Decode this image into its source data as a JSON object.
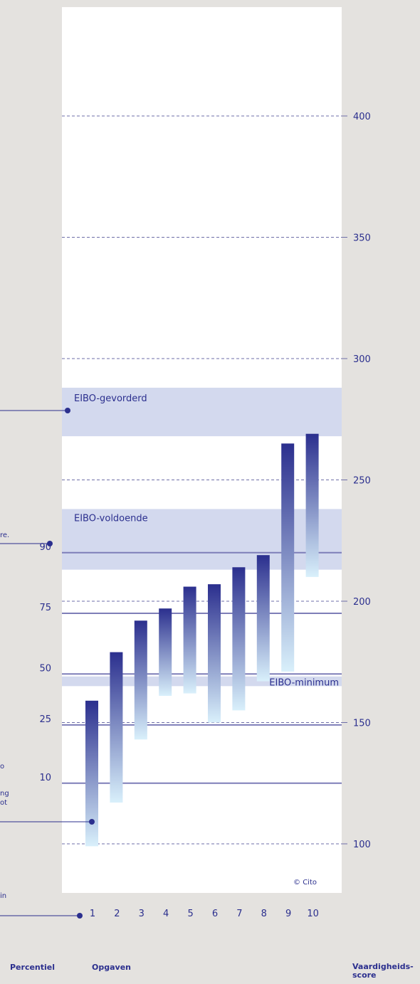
{
  "chart_data": {
    "type": "bar",
    "title": "",
    "xlabel": "Opgaven",
    "ylabel": "Vaardigheids-score",
    "left_axis_label": "Percentiel",
    "copyright": "© Cito",
    "ylim": [
      75,
      420
    ],
    "right_axis_ticks": [
      100,
      150,
      200,
      250,
      300,
      350,
      400
    ],
    "categories": [
      "1",
      "2",
      "3",
      "4",
      "5",
      "6",
      "7",
      "8",
      "9",
      "10"
    ],
    "series": [
      {
        "low": [
          99,
          117,
          143,
          161,
          162,
          150,
          155,
          167,
          171,
          210
        ],
        "high": [
          159,
          179,
          192,
          197,
          206,
          207,
          214,
          219,
          265,
          269
        ]
      }
    ],
    "percentiles": [
      {
        "label": "90",
        "score": 220
      },
      {
        "label": "75",
        "score": 195
      },
      {
        "label": "50",
        "score": 170
      },
      {
        "label": "25",
        "score": 149
      },
      {
        "label": "10",
        "score": 125
      }
    ],
    "bands": [
      {
        "label": "EIBO-gevorderd",
        "low": 268,
        "high": 288
      },
      {
        "label": "EIBO-voldoende",
        "low": 213,
        "high": 238
      },
      {
        "label": "EIBO-minimum",
        "low": 165,
        "high": 169
      }
    ],
    "pointer_texts": [
      {
        "label": "re."
      },
      {
        "label": "ng"
      },
      {
        "label": "ot"
      },
      {
        "label": "o"
      },
      {
        "label": "in"
      }
    ],
    "colors": {
      "background": "#e4e2df",
      "plot": "#ffffff",
      "band": "#d3d9ee",
      "bar_top": "#2b2f8e",
      "bar_bottom": "#d9f0fb",
      "line": "#7e7eb8",
      "text": "#2b2f8e"
    }
  }
}
